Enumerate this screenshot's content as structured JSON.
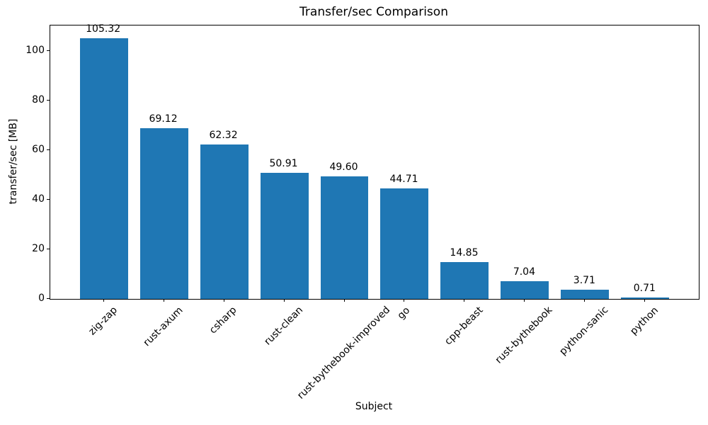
{
  "figure": {
    "background": "#ffffff"
  },
  "chart_data": {
    "type": "bar",
    "title": "Transfer/sec Comparison",
    "xlabel": "Subject",
    "ylabel": "transfer/sec [MB]",
    "categories": [
      "zig-zap",
      "rust-axum",
      "csharp",
      "rust-clean",
      "rust-bythebook-improved",
      "go",
      "cpp-beast",
      "rust-bythebook",
      "python-sanic",
      "python"
    ],
    "values": [
      105.32,
      69.12,
      62.32,
      50.91,
      49.6,
      44.71,
      14.85,
      7.04,
      3.71,
      0.71
    ],
    "value_labels": [
      "105.32",
      "69.12",
      "62.32",
      "50.91",
      "49.60",
      "44.71",
      "14.85",
      "7.04",
      "3.71",
      "0.71"
    ],
    "yticks": [
      0,
      20,
      40,
      60,
      80,
      100
    ],
    "ylim": [
      0,
      110.6
    ],
    "bar_color": "#1f77b4",
    "axis_color": "#000000",
    "text_color": "#000000",
    "grid": false,
    "legend_position": "none",
    "xtick_rotation_deg": 45
  }
}
